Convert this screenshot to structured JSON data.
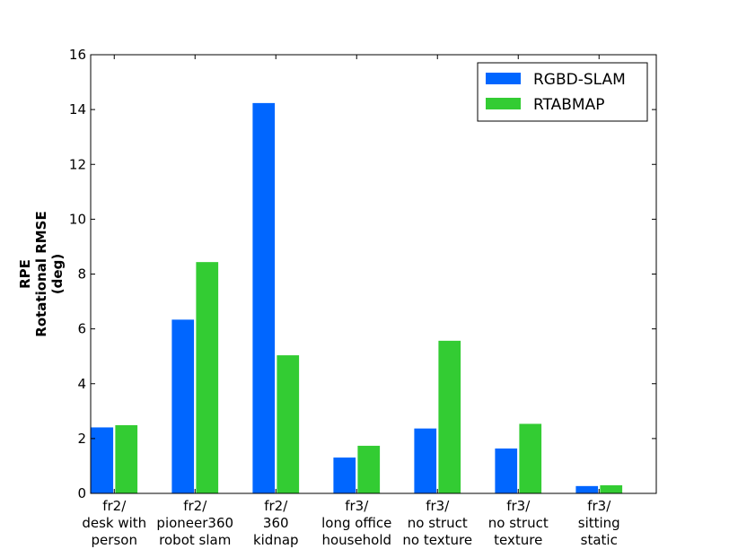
{
  "chart_data": {
    "type": "bar",
    "title": "",
    "xlabel": "",
    "ylabel_lines": [
      "RPE",
      "Rotational RMSE",
      "(deg)"
    ],
    "ylim": [
      0,
      16
    ],
    "yticks": [
      0,
      2,
      4,
      6,
      8,
      10,
      12,
      14,
      16
    ],
    "grid": false,
    "legend_position": "top-right",
    "categories": [
      [
        "fr2/",
        "desk with",
        "person"
      ],
      [
        "fr2/",
        "pioneer360",
        "robot slam"
      ],
      [
        "fr2/",
        "360",
        "kidnap"
      ],
      [
        "fr3/",
        "long office",
        "household"
      ],
      [
        "fr3/",
        "no struct",
        "no texture"
      ],
      [
        "fr3/",
        "no struct",
        "texture"
      ],
      [
        "fr3/",
        "sitting",
        "static"
      ]
    ],
    "series": [
      {
        "name": "RGBD-SLAM",
        "color": "#0066ff",
        "values": [
          2.42,
          6.35,
          14.25,
          1.32,
          2.38,
          1.65,
          0.28
        ]
      },
      {
        "name": "RTABMAP",
        "color": "#33cc33",
        "values": [
          2.5,
          8.45,
          5.05,
          1.75,
          5.58,
          2.55,
          0.31
        ]
      }
    ]
  }
}
